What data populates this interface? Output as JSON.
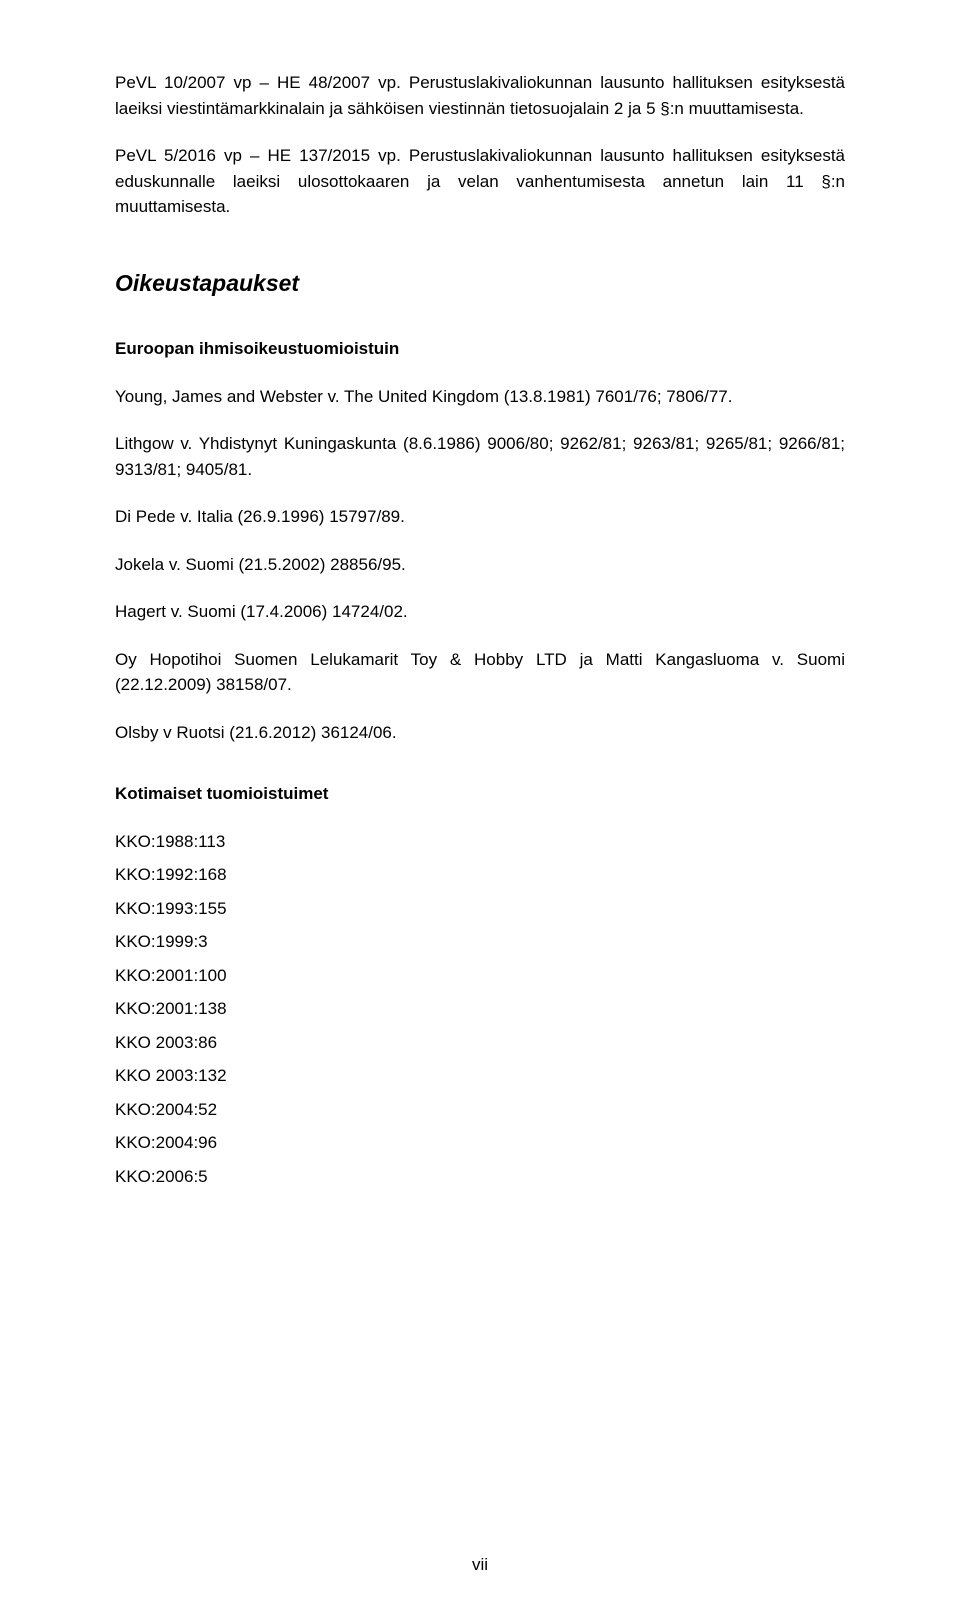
{
  "paras": [
    "PeVL 10/2007 vp – HE 48/2007 vp. Perustuslakivaliokunnan lausunto hallituksen esityksestä laeiksi viestintämarkkinalain ja sähköisen viestinnän tietosuojalain 2 ja 5 §:n muuttamisesta.",
    "PeVL 5/2016 vp – HE 137/2015 vp. Perustuslakivaliokunnan lausunto hallituksen esityksestä eduskunnalle laeiksi ulosottokaaren ja velan vanhentumisesta annetun lain 11 §:n muuttamisesta."
  ],
  "sectionHeading": "Oikeustapaukset",
  "subHeading1": "Euroopan ihmisoikeustuomioistuin",
  "cases": [
    "Young, James and Webster v. The United Kingdom (13.8.1981) 7601/76; 7806/77.",
    "Lithgow v. Yhdistynyt Kuningaskunta (8.6.1986) 9006/80; 9262/81; 9263/81; 9265/81; 9266/81; 9313/81; 9405/81.",
    "Di Pede v. Italia (26.9.1996) 15797/89.",
    "Jokela v. Suomi (21.5.2002) 28856/95.",
    "Hagert v. Suomi (17.4.2006) 14724/02.",
    "Oy Hopotihoi Suomen Lelukamarit Toy & Hobby LTD ja Matti Kangasluoma v. Suomi (22.12.2009) 38158/07.",
    "Olsby v Ruotsi (21.6.2012) 36124/06."
  ],
  "subHeading2": "Kotimaiset tuomioistuimet",
  "domesticCases": [
    "KKO:1988:113",
    "KKO:1992:168",
    "KKO:1993:155",
    "KKO:1999:3",
    "KKO:2001:100",
    "KKO:2001:138",
    "KKO 2003:86",
    "KKO 2003:132",
    "KKO:2004:52",
    "KKO:2004:96",
    "KKO:2006:5"
  ],
  "pageNumber": "vii"
}
